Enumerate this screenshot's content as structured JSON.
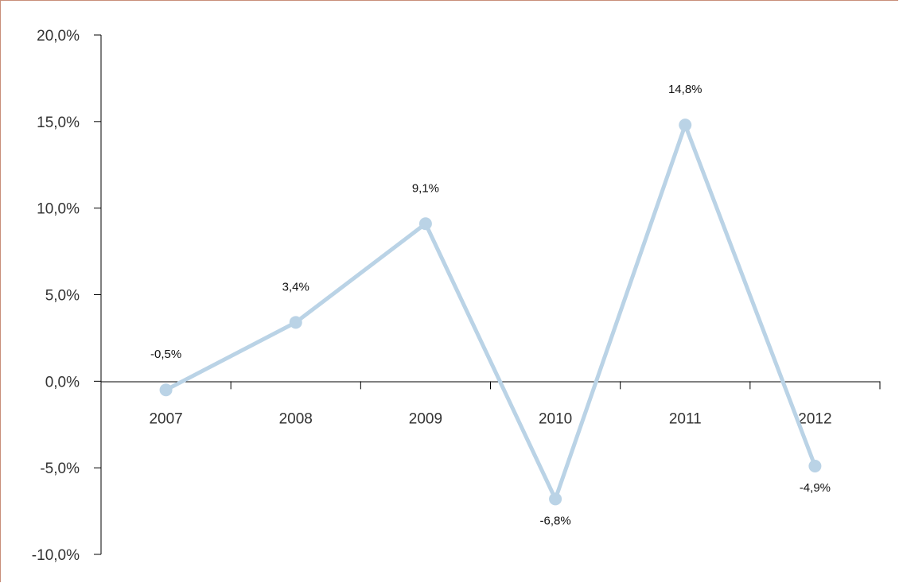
{
  "chart_data": {
    "type": "line",
    "categories": [
      "2007",
      "2008",
      "2009",
      "2010",
      "2011",
      "2012"
    ],
    "series": [
      {
        "values": [
          -0.5,
          3.4,
          9.1,
          -6.8,
          14.8,
          -4.9
        ]
      }
    ],
    "data_labels": [
      "-0,5%",
      "3,4%",
      "9,1%",
      "-6,8%",
      "14,8%",
      "-4,9%"
    ],
    "y_ticks": [
      20,
      15,
      10,
      5,
      0,
      -5,
      -10
    ],
    "y_tick_labels": [
      "20,0%",
      "15,0%",
      "10,0%",
      "5,0%",
      "0,0%",
      "-5,0%",
      "-10,0%"
    ],
    "ylim": [
      -10,
      20
    ],
    "grid": false,
    "legend": "none",
    "title": "",
    "xlabel": "",
    "ylabel": "",
    "colors": {
      "line": "#bad3e6",
      "marker": "#bad3e6",
      "axis": "#000000",
      "frame": "#c98f7a"
    }
  }
}
